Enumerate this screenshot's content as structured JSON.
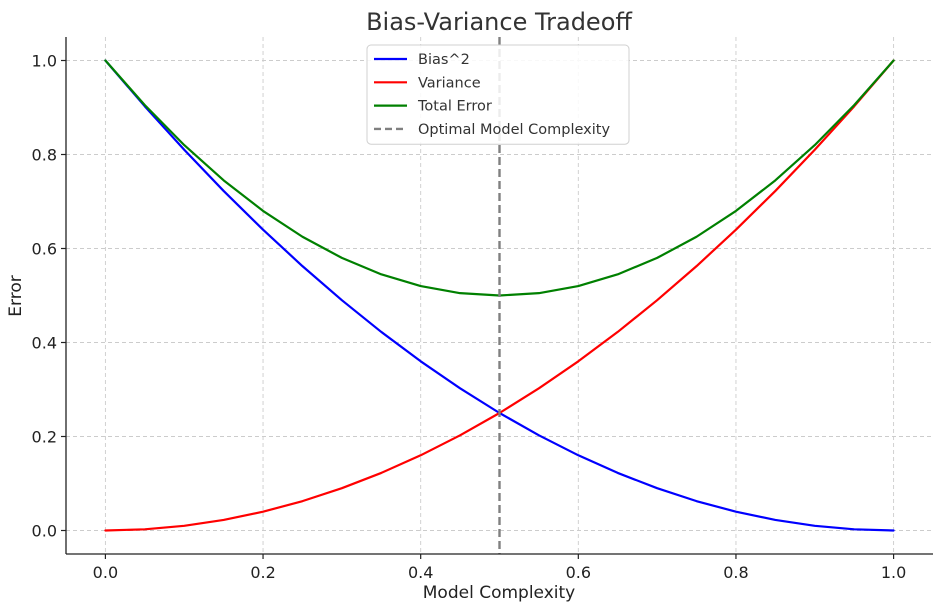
{
  "chart_data": {
    "type": "line",
    "title": "Bias-Variance Tradeoff",
    "xlabel": "Model Complexity",
    "ylabel": "Error",
    "xlim": [
      -0.05,
      1.05
    ],
    "ylim": [
      -0.05,
      1.05
    ],
    "xticks": [
      0.0,
      0.2,
      0.4,
      0.6,
      0.8,
      1.0
    ],
    "xtick_labels": [
      "0.0",
      "0.2",
      "0.4",
      "0.6",
      "0.8",
      "1.0"
    ],
    "yticks": [
      0.0,
      0.2,
      0.4,
      0.6,
      0.8,
      1.0
    ],
    "ytick_labels": [
      "0.0",
      "0.2",
      "0.4",
      "0.6",
      "0.8",
      "1.0"
    ],
    "grid": true,
    "legend_position": "top-center",
    "x": [
      0.0,
      0.05,
      0.1,
      0.15,
      0.2,
      0.25,
      0.3,
      0.35,
      0.4,
      0.45,
      0.5,
      0.55,
      0.6,
      0.65,
      0.7,
      0.75,
      0.8,
      0.85,
      0.9,
      0.95,
      1.0
    ],
    "series": [
      {
        "name": "Bias^2",
        "color": "#0000ff",
        "style": "solid",
        "values": [
          1.0,
          0.9025,
          0.81,
          0.7225,
          0.64,
          0.5625,
          0.49,
          0.4225,
          0.36,
          0.3025,
          0.25,
          0.2025,
          0.16,
          0.1225,
          0.09,
          0.0625,
          0.04,
          0.0225,
          0.01,
          0.0025,
          0.0
        ]
      },
      {
        "name": "Variance",
        "color": "#ff0000",
        "style": "solid",
        "values": [
          0.0,
          0.0025,
          0.01,
          0.0225,
          0.04,
          0.0625,
          0.09,
          0.1225,
          0.16,
          0.2025,
          0.25,
          0.3025,
          0.36,
          0.4225,
          0.49,
          0.5625,
          0.64,
          0.7225,
          0.81,
          0.9025,
          1.0
        ]
      },
      {
        "name": "Total Error",
        "color": "#008000",
        "style": "solid",
        "values": [
          1.0,
          0.905,
          0.82,
          0.745,
          0.68,
          0.625,
          0.58,
          0.545,
          0.52,
          0.505,
          0.5,
          0.505,
          0.52,
          0.545,
          0.58,
          0.625,
          0.68,
          0.745,
          0.82,
          0.905,
          1.0
        ]
      }
    ],
    "vlines": [
      {
        "name": "Optimal Model Complexity",
        "x": 0.5,
        "color": "#808080",
        "style": "dashed"
      }
    ]
  }
}
